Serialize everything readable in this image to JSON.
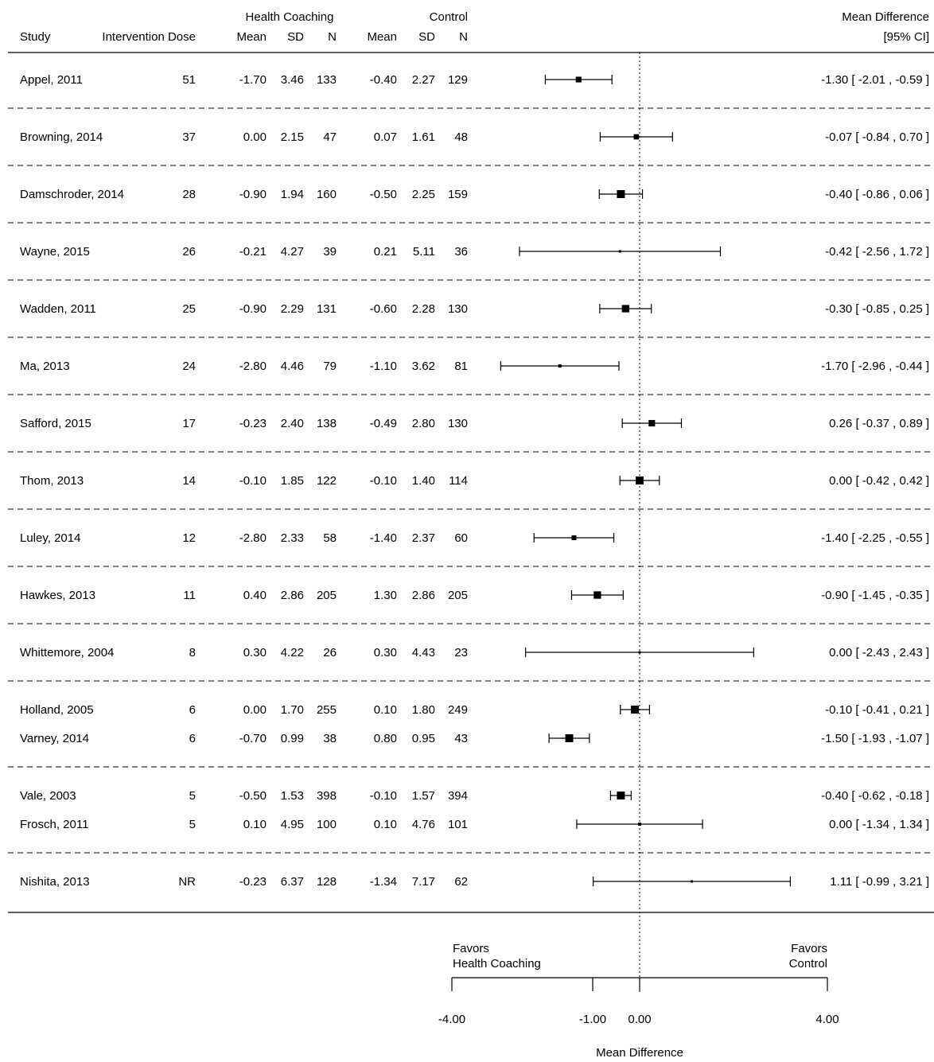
{
  "headers": {
    "study": "Study",
    "dose": "Intervention Dose",
    "group1": "Health Coaching",
    "group2": "Control",
    "mean": "Mean",
    "sd": "SD",
    "n": "N",
    "effect_line1": "Mean Difference",
    "effect_line2": "[95% CI]"
  },
  "rows": [
    {
      "study": "Appel, 2011",
      "dose": "51",
      "hc_mean": "-1.70",
      "hc_sd": "3.46",
      "hc_n": "133",
      "c_mean": "-0.40",
      "c_sd": "2.27",
      "c_n": "129",
      "md_text": "-1.30 [ -2.01 , -0.59 ]"
    },
    {
      "study": "Browning, 2014",
      "dose": "37",
      "hc_mean": "0.00",
      "hc_sd": "2.15",
      "hc_n": "47",
      "c_mean": "0.07",
      "c_sd": "1.61",
      "c_n": "48",
      "md_text": "-0.07 [ -0.84 ,  0.70 ]"
    },
    {
      "study": "Damschroder, 2014",
      "dose": "28",
      "hc_mean": "-0.90",
      "hc_sd": "1.94",
      "hc_n": "160",
      "c_mean": "-0.50",
      "c_sd": "2.25",
      "c_n": "159",
      "md_text": "-0.40 [ -0.86 ,  0.06 ]"
    },
    {
      "study": "Wayne, 2015",
      "dose": "26",
      "hc_mean": "-0.21",
      "hc_sd": "4.27",
      "hc_n": "39",
      "c_mean": "0.21",
      "c_sd": "5.11",
      "c_n": "36",
      "md_text": "-0.42 [ -2.56 ,  1.72 ]"
    },
    {
      "study": "Wadden, 2011",
      "dose": "25",
      "hc_mean": "-0.90",
      "hc_sd": "2.29",
      "hc_n": "131",
      "c_mean": "-0.60",
      "c_sd": "2.28",
      "c_n": "130",
      "md_text": "-0.30 [ -0.85 ,  0.25 ]"
    },
    {
      "study": "Ma, 2013",
      "dose": "24",
      "hc_mean": "-2.80",
      "hc_sd": "4.46",
      "hc_n": "79",
      "c_mean": "-1.10",
      "c_sd": "3.62",
      "c_n": "81",
      "md_text": "-1.70 [ -2.96 , -0.44 ]"
    },
    {
      "study": "Safford, 2015",
      "dose": "17",
      "hc_mean": "-0.23",
      "hc_sd": "2.40",
      "hc_n": "138",
      "c_mean": "-0.49",
      "c_sd": "2.80",
      "c_n": "130",
      "md_text": "0.26 [ -0.37 ,  0.89 ]"
    },
    {
      "study": "Thom, 2013",
      "dose": "14",
      "hc_mean": "-0.10",
      "hc_sd": "1.85",
      "hc_n": "122",
      "c_mean": "-0.10",
      "c_sd": "1.40",
      "c_n": "114",
      "md_text": "0.00 [ -0.42 ,  0.42 ]"
    },
    {
      "study": "Luley, 2014",
      "dose": "12",
      "hc_mean": "-2.80",
      "hc_sd": "2.33",
      "hc_n": "58",
      "c_mean": "-1.40",
      "c_sd": "2.37",
      "c_n": "60",
      "md_text": "-1.40 [ -2.25 , -0.55 ]"
    },
    {
      "study": "Hawkes, 2013",
      "dose": "11",
      "hc_mean": "0.40",
      "hc_sd": "2.86",
      "hc_n": "205",
      "c_mean": "1.30",
      "c_sd": "2.86",
      "c_n": "205",
      "md_text": "-0.90 [ -1.45 , -0.35 ]"
    },
    {
      "study": "Whittemore, 2004",
      "dose": "8",
      "hc_mean": "0.30",
      "hc_sd": "4.22",
      "hc_n": "26",
      "c_mean": "0.30",
      "c_sd": "4.43",
      "c_n": "23",
      "md_text": "0.00 [ -2.43 ,  2.43 ]"
    },
    {
      "study": "Holland, 2005",
      "dose": "6",
      "hc_mean": "0.00",
      "hc_sd": "1.70",
      "hc_n": "255",
      "c_mean": "0.10",
      "c_sd": "1.80",
      "c_n": "249",
      "md_text": "-0.10 [ -0.41 ,  0.21 ]"
    },
    {
      "study": "Varney, 2014",
      "dose": "6",
      "hc_mean": "-0.70",
      "hc_sd": "0.99",
      "hc_n": "38",
      "c_mean": "0.80",
      "c_sd": "0.95",
      "c_n": "43",
      "md_text": "-1.50 [ -1.93 , -1.07 ]"
    },
    {
      "study": "Vale, 2003",
      "dose": "5",
      "hc_mean": "-0.50",
      "hc_sd": "1.53",
      "hc_n": "398",
      "c_mean": "-0.10",
      "c_sd": "1.57",
      "c_n": "394",
      "md_text": "-0.40 [ -0.62 , -0.18 ]"
    },
    {
      "study": "Frosch, 2011",
      "dose": "5",
      "hc_mean": "0.10",
      "hc_sd": "4.95",
      "hc_n": "100",
      "c_mean": "0.10",
      "c_sd": "4.76",
      "c_n": "101",
      "md_text": "0.00 [ -1.34 ,  1.34 ]"
    },
    {
      "study": "Nishita, 2013",
      "dose": "NR",
      "hc_mean": "-0.23",
      "hc_sd": "6.37",
      "hc_n": "128",
      "c_mean": "-1.34",
      "c_sd": "7.17",
      "c_n": "62",
      "md_text": "1.11 [ -0.99 ,  3.21 ]"
    }
  ],
  "axis": {
    "favors_left_line1": "Favors",
    "favors_left_line2": "Health Coaching",
    "favors_right_line1": "Favors",
    "favors_right_line2": "Control",
    "tick_labels": [
      "-4.00",
      "-1.00",
      "0.00",
      "4.00"
    ],
    "xlabel": "Mean Difference"
  },
  "chart_data": {
    "type": "forest",
    "xlabel": "Mean Difference",
    "xlim": [
      -4,
      4
    ],
    "ticks": [
      -4,
      -1,
      0,
      4
    ],
    "reference_line": 0,
    "categories": [
      "Appel, 2011",
      "Browning, 2014",
      "Damschroder, 2014",
      "Wayne, 2015",
      "Wadden, 2011",
      "Ma, 2013",
      "Safford, 2015",
      "Thom, 2013",
      "Luley, 2014",
      "Hawkes, 2013",
      "Whittemore, 2004",
      "Holland, 2005",
      "Varney, 2014",
      "Vale, 2003",
      "Frosch, 2011",
      "Nishita, 2013"
    ],
    "estimates": [
      -1.3,
      -0.07,
      -0.4,
      -0.42,
      -0.3,
      -1.7,
      0.26,
      0.0,
      -1.4,
      -0.9,
      0.0,
      -0.1,
      -1.5,
      -0.4,
      0.0,
      1.11
    ],
    "ci_lower": [
      -2.01,
      -0.84,
      -0.86,
      -2.56,
      -0.85,
      -2.96,
      -0.37,
      -0.42,
      -2.25,
      -1.45,
      -2.43,
      -0.41,
      -1.93,
      -0.62,
      -1.34,
      -0.99
    ],
    "ci_upper": [
      -0.59,
      0.7,
      0.06,
      1.72,
      0.25,
      -0.44,
      0.89,
      0.42,
      -0.55,
      -0.35,
      2.43,
      0.21,
      -1.07,
      -0.18,
      1.34,
      3.21
    ]
  }
}
